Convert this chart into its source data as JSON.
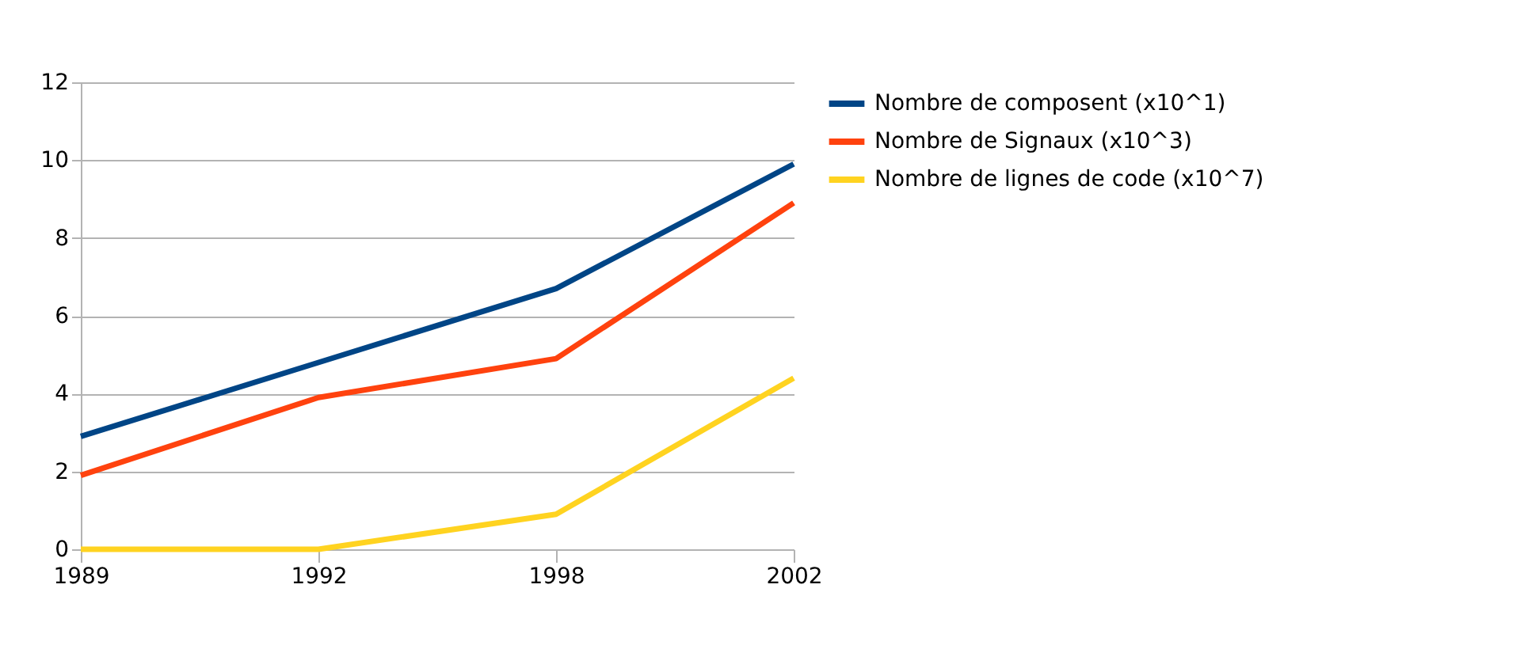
{
  "chart_data": {
    "type": "line",
    "categories": [
      "1989",
      "1992",
      "1998",
      "2002"
    ],
    "series": [
      {
        "name": "Nombre de composent (x10^1)",
        "color": "#004586",
        "values": [
          2.9,
          4.8,
          6.7,
          9.9
        ]
      },
      {
        "name": "Nombre de Signaux (x10^3)",
        "color": "#ff420e",
        "values": [
          1.9,
          3.9,
          4.9,
          8.9
        ]
      },
      {
        "name": "Nombre de lignes de code (x10^7)",
        "color": "#ffd320",
        "values": [
          0,
          0,
          0.9,
          4.4
        ]
      }
    ],
    "ylim": [
      0,
      12
    ],
    "yticks": [
      0,
      2,
      4,
      6,
      8,
      10,
      12
    ],
    "grid": "y",
    "legend": "right",
    "marker": "none",
    "line_style": "solid"
  }
}
